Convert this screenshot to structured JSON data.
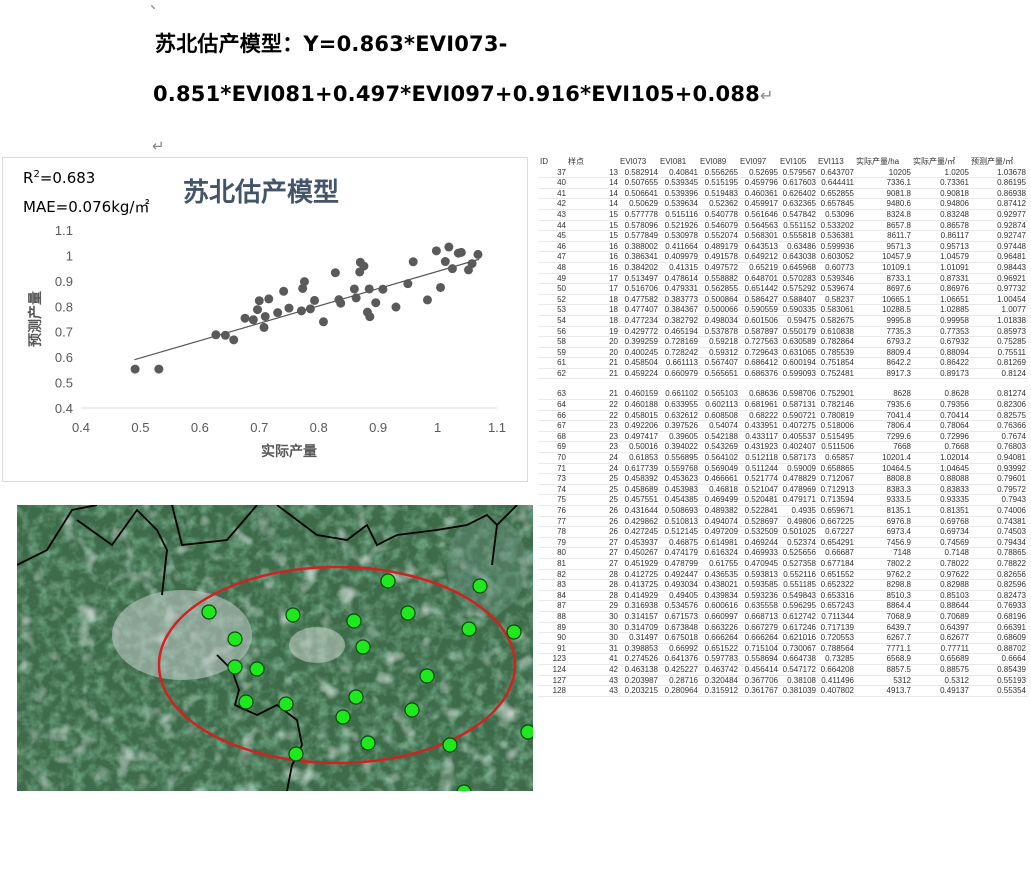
{
  "document": {
    "top_mark": "、",
    "formula_line1": "苏北估产模型：Y=0.863*EVI073-",
    "formula_line2": "0.851*EVI081+0.497*EVI097+0.916*EVI105+0.088",
    "return_mark": "↵"
  },
  "chart": {
    "r2_label": "R",
    "r2_sup": "2",
    "r2_value": "=0.683",
    "mae": "MAE=0.076kg/㎡"
  },
  "chart_data": {
    "type": "scatter",
    "title": "苏北估产模型",
    "xlabel": "实际产量",
    "ylabel": "预测产量",
    "xlim": [
      0.4,
      1.1
    ],
    "ylim": [
      0.4,
      1.1
    ],
    "xticks": [
      "0.4",
      "0.5",
      "0.6",
      "0.7",
      "0.8",
      "0.9",
      "1",
      "1.1"
    ],
    "yticks": [
      "0.4",
      "0.5",
      "0.6",
      "0.7",
      "0.8",
      "0.9",
      "1",
      "1.1"
    ],
    "trendline": {
      "x": [
        0.49,
        1.07
      ],
      "y": [
        0.59,
        0.985
      ]
    },
    "points": [
      [
        0.491,
        0.553
      ],
      [
        0.531,
        0.553
      ],
      [
        0.627,
        0.688
      ],
      [
        0.643,
        0.686
      ],
      [
        0.657,
        0.668
      ],
      [
        0.676,
        0.753
      ],
      [
        0.69,
        0.747
      ],
      [
        0.697,
        0.787
      ],
      [
        0.7,
        0.822
      ],
      [
        0.708,
        0.717
      ],
      [
        0.71,
        0.76
      ],
      [
        0.716,
        0.829
      ],
      [
        0.731,
        0.775
      ],
      [
        0.741,
        0.859
      ],
      [
        0.75,
        0.793
      ],
      [
        0.771,
        0.782
      ],
      [
        0.773,
        0.87
      ],
      [
        0.776,
        0.897
      ],
      [
        0.786,
        0.79
      ],
      [
        0.793,
        0.823
      ],
      [
        0.808,
        0.739
      ],
      [
        0.828,
        0.932
      ],
      [
        0.834,
        0.826
      ],
      [
        0.837,
        0.812
      ],
      [
        0.86,
        0.868
      ],
      [
        0.863,
        0.833
      ],
      [
        0.869,
        0.935
      ],
      [
        0.87,
        0.973
      ],
      [
        0.876,
        0.958
      ],
      [
        0.882,
        0.777
      ],
      [
        0.885,
        0.868
      ],
      [
        0.886,
        0.759
      ],
      [
        0.896,
        0.814
      ],
      [
        0.908,
        0.867
      ],
      [
        0.93,
        0.797
      ],
      [
        0.95,
        0.889
      ],
      [
        0.959,
        0.975
      ],
      [
        0.983,
        0.825
      ],
      [
        0.998,
        1.018
      ],
      [
        1.005,
        0.874
      ],
      [
        1.013,
        0.976
      ],
      [
        1.019,
        1.033
      ],
      [
        1.025,
        0.948
      ],
      [
        1.035,
        1.009
      ],
      [
        1.04,
        1.012
      ],
      [
        1.052,
        0.943
      ],
      [
        1.058,
        0.968
      ],
      [
        1.068,
        1.004
      ]
    ]
  },
  "map": {
    "markers": [
      [
        192,
        107
      ],
      [
        218,
        134
      ],
      [
        218,
        162
      ],
      [
        240,
        164
      ],
      [
        276,
        110
      ],
      [
        337,
        116
      ],
      [
        346,
        142
      ],
      [
        339,
        192
      ],
      [
        229,
        197
      ],
      [
        269,
        199
      ],
      [
        326,
        212
      ],
      [
        395,
        205
      ],
      [
        410,
        171
      ],
      [
        351,
        238
      ],
      [
        279,
        249
      ],
      [
        371,
        76
      ],
      [
        391,
        108
      ],
      [
        452,
        124
      ],
      [
        463,
        81
      ],
      [
        497,
        127
      ],
      [
        433,
        240
      ],
      [
        511,
        227
      ],
      [
        447,
        287
      ]
    ]
  },
  "table": {
    "headers": [
      "ID",
      "样点",
      "EVI073",
      "EVI081",
      "EVI089",
      "EVI097",
      "EVI105",
      "EVI113",
      "实际产量/ha",
      "实际产量/㎡",
      "预测产量/㎡"
    ],
    "rows_top": [
      [
        "37",
        "13",
        "0.582914",
        "0.40841",
        "0.556265",
        "0.52695",
        "0.579567",
        "0.643707",
        "10205",
        "1.0205",
        "1.03678"
      ],
      [
        "40",
        "14",
        "0.507655",
        "0.539345",
        "0.515195",
        "0.459796",
        "0.617603",
        "0.644411",
        "7336.1",
        "0.73361",
        "0.86195"
      ],
      [
        "41",
        "14",
        "0.506641",
        "0.539396",
        "0.519483",
        "0.460361",
        "0.626402",
        "0.652855",
        "9081.8",
        "0.90818",
        "0.86938"
      ],
      [
        "42",
        "14",
        "0.50629",
        "0.539634",
        "0.52362",
        "0.459917",
        "0.632365",
        "0.657845",
        "9480.6",
        "0.94806",
        "0.87412"
      ],
      [
        "43",
        "15",
        "0.577778",
        "0.515116",
        "0.540778",
        "0.561646",
        "0.547842",
        "0.53096",
        "8324.8",
        "0.83248",
        "0.92977"
      ],
      [
        "44",
        "15",
        "0.578096",
        "0.521926",
        "0.546079",
        "0.564563",
        "0.551152",
        "0.533202",
        "8657.8",
        "0.86578",
        "0.92874"
      ],
      [
        "45",
        "15",
        "0.577849",
        "0.530978",
        "0.552074",
        "0.568301",
        "0.555818",
        "0.536381",
        "8611.7",
        "0.86117",
        "0.92747"
      ],
      [
        "46",
        "16",
        "0.388002",
        "0.411664",
        "0.489179",
        "0.643513",
        "0.63486",
        "0.599936",
        "9571.3",
        "0.95713",
        "0.97448"
      ],
      [
        "47",
        "16",
        "0.386341",
        "0.409979",
        "0.491578",
        "0.649212",
        "0.643038",
        "0.603052",
        "10457.9",
        "1.04579",
        "0.96481"
      ],
      [
        "48",
        "16",
        "0.384202",
        "0.41315",
        "0.497572",
        "0.65219",
        "0.645968",
        "0.60773",
        "10109.1",
        "1.01091",
        "0.98443"
      ],
      [
        "49",
        "17",
        "0.513497",
        "0.478614",
        "0.558882",
        "0.648701",
        "0.570283",
        "0.539346",
        "8733.1",
        "0.87331",
        "0.96921"
      ],
      [
        "50",
        "17",
        "0.516706",
        "0.479331",
        "0.562855",
        "0.651442",
        "0.575292",
        "0.539674",
        "8697.6",
        "0.86976",
        "0.97732"
      ],
      [
        "52",
        "18",
        "0.477582",
        "0.383773",
        "0.500864",
        "0.586427",
        "0.588407",
        "0.58237",
        "10665.1",
        "1.06651",
        "1.00454"
      ],
      [
        "53",
        "18",
        "0.477407",
        "0.384367",
        "0.500066",
        "0.590559",
        "0.590335",
        "0.583061",
        "10288.5",
        "1.02885",
        "1.0077"
      ],
      [
        "54",
        "18",
        "0.477234",
        "0.382792",
        "0.498034",
        "0.601506",
        "0.59475",
        "0.582675",
        "9995.8",
        "0.99958",
        "1.01838"
      ],
      [
        "56",
        "19",
        "0.429772",
        "0.465194",
        "0.537878",
        "0.587897",
        "0.550179",
        "0.610838",
        "7735.3",
        "0.77353",
        "0.85973"
      ],
      [
        "58",
        "20",
        "0.399259",
        "0.728169",
        "0.59218",
        "0.727563",
        "0.630589",
        "0.782864",
        "6793.2",
        "0.67932",
        "0.75285"
      ],
      [
        "59",
        "20",
        "0.400245",
        "0.728242",
        "0.59312",
        "0.729643",
        "0.631065",
        "0.785539",
        "8809.4",
        "0.88094",
        "0.75511"
      ],
      [
        "61",
        "21",
        "0.458504",
        "0.661113",
        "0.567407",
        "0.686412",
        "0.600194",
        "0.751854",
        "8642.2",
        "0.86422",
        "0.81269"
      ],
      [
        "62",
        "21",
        "0.459224",
        "0.660979",
        "0.565651",
        "0.686376",
        "0.599093",
        "0.752481",
        "8917.3",
        "0.89173",
        "0.8124"
      ]
    ],
    "rows_bottom": [
      [
        "63",
        "21",
        "0.460159",
        "0.661102",
        "0.565103",
        "0.68636",
        "0.598706",
        "0.752901",
        "8628",
        "0.8628",
        "0.81274"
      ],
      [
        "64",
        "22",
        "0.460188",
        "0.633955",
        "0.602113",
        "0.681961",
        "0.587131",
        "0.782146",
        "7935.6",
        "0.79356",
        "0.82306"
      ],
      [
        "66",
        "22",
        "0.458015",
        "0.632612",
        "0.608508",
        "0.68222",
        "0.590721",
        "0.780819",
        "7041.4",
        "0.70414",
        "0.82575"
      ],
      [
        "67",
        "23",
        "0.492206",
        "0.397526",
        "0.54074",
        "0.433951",
        "0.407275",
        "0.518006",
        "7806.4",
        "0.78064",
        "0.76366"
      ],
      [
        "68",
        "23",
        "0.497417",
        "0.39605",
        "0.542188",
        "0.433117",
        "0.405537",
        "0.515495",
        "7299.6",
        "0.72996",
        "0.7674"
      ],
      [
        "69",
        "23",
        "0.50016",
        "0.394022",
        "0.543269",
        "0.431923",
        "0.402407",
        "0.511506",
        "7668",
        "0.7668",
        "0.76803"
      ],
      [
        "70",
        "24",
        "0.61853",
        "0.556895",
        "0.564102",
        "0.512118",
        "0.587173",
        "0.65857",
        "10201.4",
        "1.02014",
        "0.94081"
      ],
      [
        "71",
        "24",
        "0.617739",
        "0.559768",
        "0.569049",
        "0.511244",
        "0.59009",
        "0.658865",
        "10464.5",
        "1.04645",
        "0.93992"
      ],
      [
        "73",
        "25",
        "0.458392",
        "0.453623",
        "0.466661",
        "0.521774",
        "0.478829",
        "0.712067",
        "8808.8",
        "0.88088",
        "0.79601"
      ],
      [
        "74",
        "25",
        "0.458689",
        "0.453983",
        "0.46818",
        "0.521047",
        "0.478969",
        "0.712913",
        "8383.3",
        "0.83833",
        "0.79572"
      ],
      [
        "75",
        "25",
        "0.457551",
        "0.454385",
        "0.469499",
        "0.520481",
        "0.479171",
        "0.713594",
        "9333.5",
        "0.93335",
        "0.7943"
      ],
      [
        "76",
        "26",
        "0.431644",
        "0.508693",
        "0.489382",
        "0.522841",
        "0.4935",
        "0.659671",
        "8135.1",
        "0.81351",
        "0.74006"
      ],
      [
        "77",
        "26",
        "0.429862",
        "0.510813",
        "0.494074",
        "0.528697",
        "0.49806",
        "0.667225",
        "6976.8",
        "0.69768",
        "0.74381"
      ],
      [
        "78",
        "26",
        "0.427245",
        "0.512145",
        "0.497209",
        "0.532509",
        "0.501025",
        "0.67227",
        "6973.4",
        "0.69734",
        "0.74503"
      ],
      [
        "79",
        "27",
        "0.453937",
        "0.46875",
        "0.614981",
        "0.469244",
        "0.52374",
        "0.654291",
        "7456.9",
        "0.74569",
        "0.79434"
      ],
      [
        "80",
        "27",
        "0.450267",
        "0.474179",
        "0.616324",
        "0.469933",
        "0.525656",
        "0.66687",
        "7148",
        "0.7148",
        "0.78865"
      ],
      [
        "81",
        "27",
        "0.451929",
        "0.478799",
        "0.61755",
        "0.470945",
        "0.527358",
        "0.677184",
        "7802.2",
        "0.78022",
        "0.78822"
      ],
      [
        "82",
        "28",
        "0.412725",
        "0.492447",
        "0.436535",
        "0.593813",
        "0.552116",
        "0.651552",
        "9762.2",
        "0.97622",
        "0.82656"
      ],
      [
        "83",
        "28",
        "0.413725",
        "0.493034",
        "0.438021",
        "0.593585",
        "0.551185",
        "0.652322",
        "8298.8",
        "0.82988",
        "0.82596"
      ],
      [
        "84",
        "28",
        "0.414929",
        "0.49405",
        "0.439834",
        "0.593236",
        "0.549843",
        "0.653316",
        "8510.3",
        "0.85103",
        "0.82473"
      ],
      [
        "87",
        "29",
        "0.316938",
        "0.534576",
        "0.600616",
        "0.635558",
        "0.596295",
        "0.657243",
        "8864.4",
        "0.88644",
        "0.76933"
      ],
      [
        "88",
        "30",
        "0.314157",
        "0.671573",
        "0.660997",
        "0.668713",
        "0.612742",
        "0.711344",
        "7068.9",
        "0.70689",
        "0.68196"
      ],
      [
        "89",
        "30",
        "0.314709",
        "0.673848",
        "0.663226",
        "0.667279",
        "0.617246",
        "0.717139",
        "6439.7",
        "0.64397",
        "0.66391"
      ],
      [
        "90",
        "30",
        "0.31497",
        "0.675018",
        "0.666264",
        "0.666264",
        "0.621016",
        "0.720553",
        "6267.7",
        "0.62677",
        "0.68609"
      ],
      [
        "91",
        "31",
        "0.398853",
        "0.66992",
        "0.651522",
        "0.715104",
        "0.730067",
        "0.788564",
        "7771.1",
        "0.77711",
        "0.88702"
      ],
      [
        "123",
        "41",
        "0.274526",
        "0.641376",
        "0.597783",
        "0.558694",
        "0.664738",
        "0.73285",
        "6568.9",
        "0.65689",
        "0.6664"
      ],
      [
        "124",
        "42",
        "0.463138",
        "0.425227",
        "0.463742",
        "0.456414",
        "0.547172",
        "0.664208",
        "8857.5",
        "0.88575",
        "0.85439"
      ],
      [
        "127",
        "43",
        "0.203987",
        "0.28716",
        "0.320484",
        "0.367706",
        "0.38108",
        "0.411496",
        "5312",
        "0.5312",
        "0.55193"
      ],
      [
        "128",
        "43",
        "0.203215",
        "0.280964",
        "0.315912",
        "0.361767",
        "0.381039",
        "0.407802",
        "4913.7",
        "0.49137",
        "0.55354"
      ]
    ]
  },
  "colors": {
    "title": "#44546a",
    "point": "#5a5a5a",
    "ellipse": "#d42020",
    "marker": "#1ee81e",
    "marker_edge": "#0a4a0a",
    "boundary": "#000000"
  }
}
